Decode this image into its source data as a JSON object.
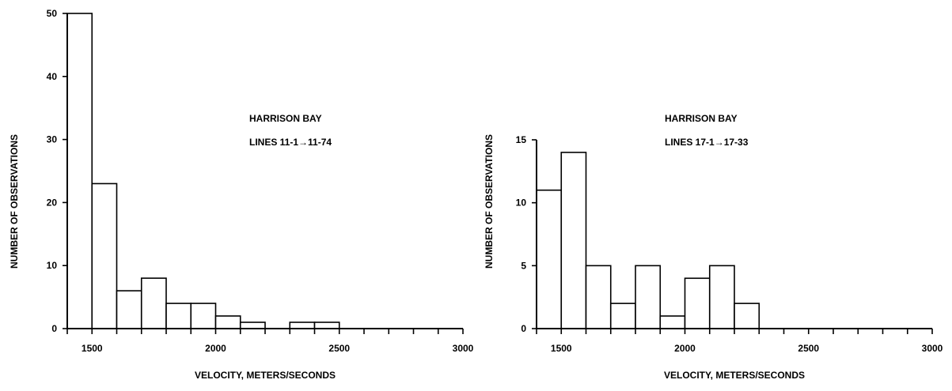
{
  "chart_data": [
    {
      "type": "bar",
      "ylabel": "NUMBER OF OBSERVATIONS",
      "xlabel": "VELOCITY, METERS/SECONDS",
      "annotation": [
        "HARRISON BAY",
        "LINES 11-1→11-74"
      ],
      "xlim": [
        1400,
        3000
      ],
      "ylim": [
        0,
        50
      ],
      "x_ticks_labeled": [
        "1500",
        "2000",
        "2500",
        "3000"
      ],
      "y_ticks_labeled": [
        "0",
        "10",
        "20",
        "30",
        "40",
        "50"
      ],
      "bin_width": 100,
      "bin_starts": [
        1400,
        1500,
        1600,
        1700,
        1800,
        1900,
        2000,
        2100,
        2300,
        2400
      ],
      "values": [
        50,
        23,
        6,
        8,
        4,
        4,
        2,
        1,
        1,
        1
      ]
    },
    {
      "type": "bar",
      "ylabel": "NUMBER OF OBSERVATIONS",
      "xlabel": "VELOCITY, METERS/SECONDS",
      "annotation": [
        "HARRISON BAY",
        "LINES 17-1→17-33"
      ],
      "xlim": [
        1400,
        3000
      ],
      "ylim": [
        0,
        15
      ],
      "x_ticks_labeled": [
        "1500",
        "2000",
        "2500",
        "3000"
      ],
      "y_ticks_labeled": [
        "0",
        "5",
        "10",
        "15"
      ],
      "bin_width": 100,
      "bin_starts": [
        1400,
        1500,
        1600,
        1700,
        1800,
        1900,
        2000,
        2100,
        2200
      ],
      "values": [
        11,
        14,
        5,
        2,
        5,
        1,
        4,
        5,
        2
      ]
    }
  ]
}
